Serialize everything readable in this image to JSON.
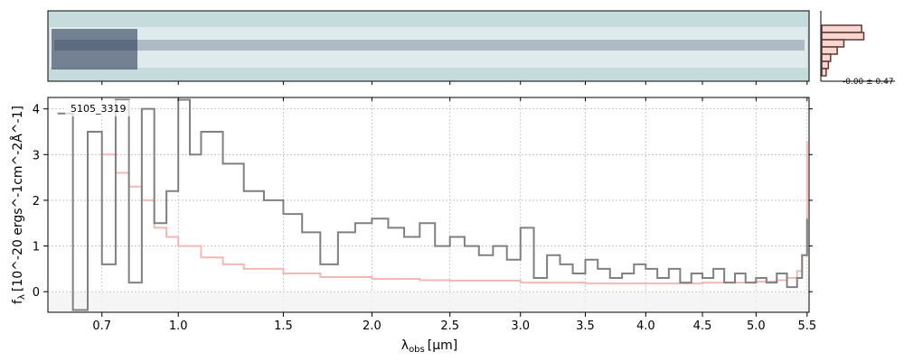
{
  "chart_data": [
    {
      "type": "heatmap",
      "title": "",
      "xlabel": "",
      "ylabel": "",
      "description_of_content": "2D spectrum image",
      "colors": {
        "background": "#c6dcdc",
        "dark": "#1b2a4a"
      }
    },
    {
      "type": "line",
      "object_id": "5105_3319",
      "xlabel_prefix": "λ",
      "xlabel_sub": "obs",
      "xlabel_unit": "[μm]",
      "ylabel_text": "f",
      "ylabel_sub": "λ",
      "ylabel_unit": "[10^-20 ergs^-1cm^-2Å^-1]",
      "x_ticks": [
        "0.7",
        "1.0",
        "1.5",
        "2.0",
        "2.5",
        "3.0",
        "3.5",
        "4.0",
        "4.5",
        "5.0",
        "5.5"
      ],
      "x_tick_values": [
        0.7,
        1.0,
        1.5,
        2.0,
        2.5,
        3.0,
        3.5,
        4.0,
        4.5,
        5.0,
        5.5
      ],
      "y_ticks": [
        "0",
        "1",
        "2",
        "3",
        "4"
      ],
      "y_tick_values": [
        0,
        1,
        2,
        3,
        4
      ],
      "ylim": [
        -0.45,
        4.25
      ],
      "xlim": [
        0.52,
        5.52
      ],
      "grid": true,
      "series": [
        {
          "role": "flux",
          "color": "#808080",
          "x": [
            0.55,
            0.6,
            0.65,
            0.7,
            0.75,
            0.8,
            0.85,
            0.9,
            0.95,
            1.0,
            1.05,
            1.1,
            1.2,
            1.3,
            1.4,
            1.5,
            1.6,
            1.7,
            1.8,
            1.9,
            2.0,
            2.1,
            2.2,
            2.3,
            2.4,
            2.5,
            2.6,
            2.7,
            2.8,
            2.9,
            3.0,
            3.1,
            3.2,
            3.3,
            3.4,
            3.5,
            3.6,
            3.7,
            3.8,
            3.9,
            4.0,
            4.1,
            4.2,
            4.3,
            4.4,
            4.5,
            4.6,
            4.7,
            4.8,
            4.9,
            5.0,
            5.1,
            5.2,
            5.3,
            5.4,
            5.45,
            5.5
          ],
          "y": [
            3.9,
            -0.4,
            3.5,
            0.6,
            4.2,
            0.2,
            4.0,
            1.5,
            2.2,
            4.2,
            3.0,
            3.5,
            2.8,
            2.2,
            2.0,
            1.7,
            1.3,
            0.6,
            1.3,
            1.5,
            1.6,
            1.4,
            1.2,
            1.5,
            1.0,
            1.2,
            1.0,
            0.8,
            1.0,
            0.7,
            1.4,
            0.3,
            0.8,
            0.6,
            0.4,
            0.7,
            0.5,
            0.3,
            0.4,
            0.6,
            0.5,
            0.3,
            0.5,
            0.2,
            0.4,
            0.3,
            0.5,
            0.2,
            0.4,
            0.2,
            0.3,
            0.2,
            0.4,
            0.1,
            0.3,
            0.8,
            1.6
          ]
        },
        {
          "role": "error",
          "color": "#f4b8b4",
          "x": [
            0.7,
            0.75,
            0.8,
            0.85,
            0.9,
            0.95,
            1.0,
            1.1,
            1.2,
            1.3,
            1.5,
            1.7,
            2.0,
            2.3,
            2.5,
            3.0,
            3.5,
            4.0,
            4.5,
            5.0,
            5.2,
            5.3,
            5.4,
            5.45,
            5.5
          ],
          "y": [
            3.0,
            2.6,
            2.3,
            2.0,
            1.4,
            1.2,
            1.0,
            0.75,
            0.6,
            0.5,
            0.4,
            0.32,
            0.28,
            0.25,
            0.24,
            0.2,
            0.18,
            0.18,
            0.2,
            0.22,
            0.25,
            0.3,
            0.45,
            0.8,
            3.3
          ]
        }
      ]
    },
    {
      "type": "bar",
      "orientation": "horizontal",
      "annotation": "-0.00 ± 0.47",
      "values": [
        0.9,
        0.95,
        0.5,
        0.35,
        0.2,
        0.15,
        0.1
      ],
      "colors": {
        "fill": "#fbd5cf",
        "outline": "#5a3a35"
      }
    }
  ]
}
